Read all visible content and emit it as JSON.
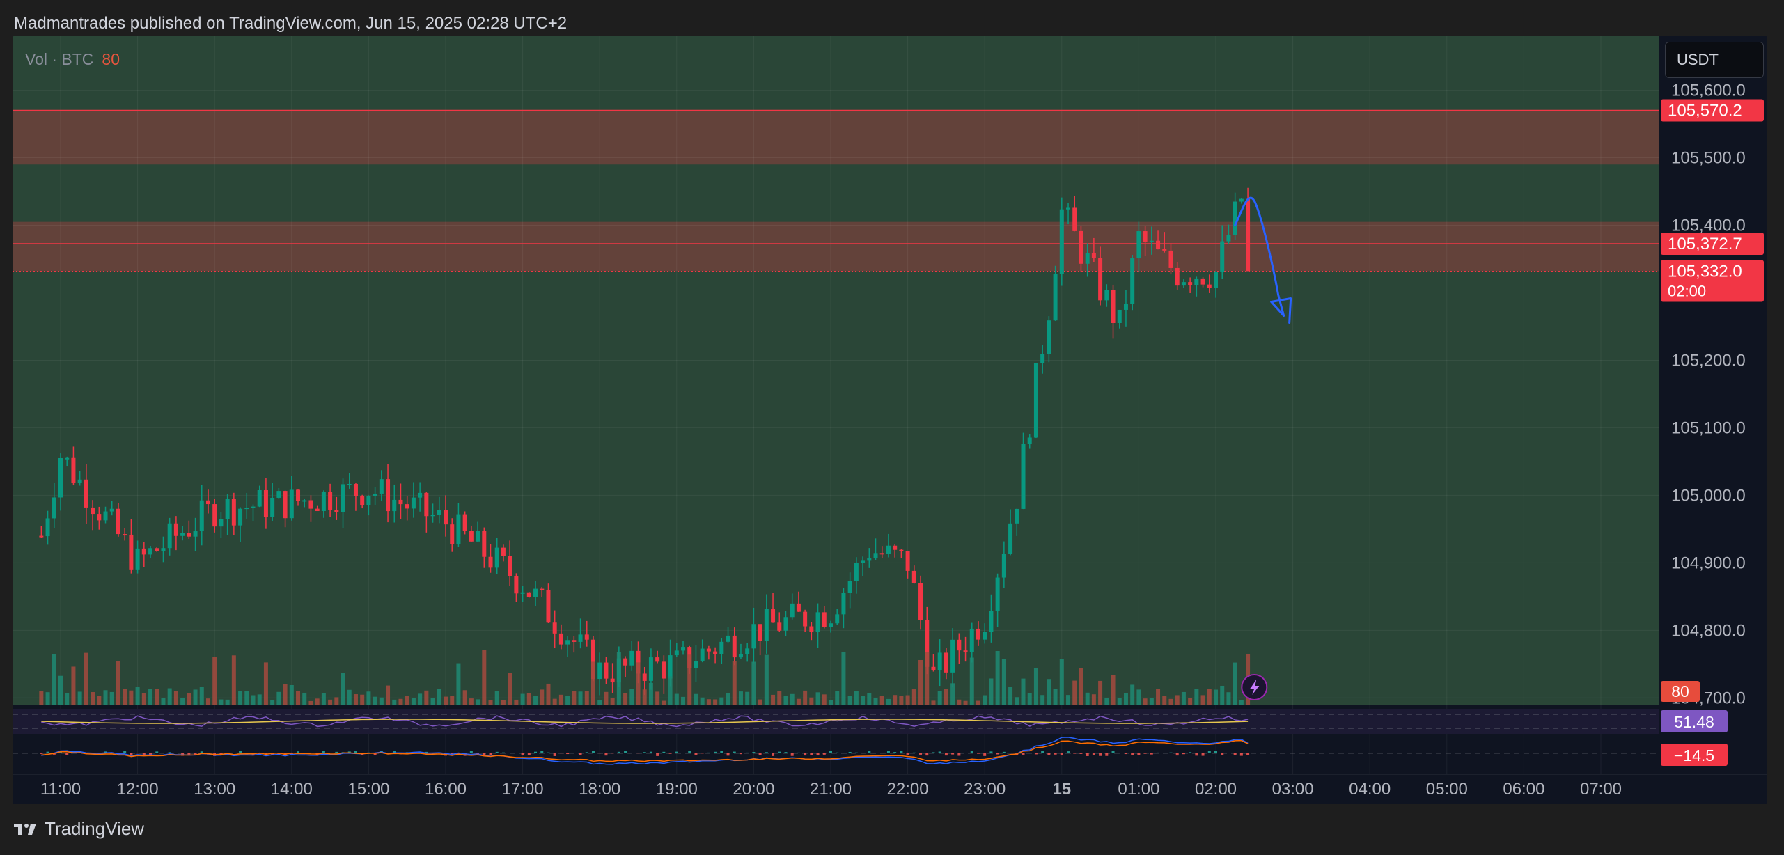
{
  "header": {
    "publisher_line": "Madmantrades published on TradingView.com, Jun 15, 2025 02:28 UTC+2"
  },
  "legend": {
    "symbol_label": "Vol · BTC",
    "value": "80"
  },
  "currency_button": {
    "label": "USDT"
  },
  "footer": {
    "brand": "TradingView",
    "icon": "tradingview-logo-icon"
  },
  "colors": {
    "background": "#1e1e1e",
    "pane": "#0f1421",
    "green_zone": "#2a4637",
    "red_zone": "#66423a",
    "bull": "#089981",
    "bear": "#f23645",
    "price_line": "#f23645",
    "drawing": "#2962ff",
    "rsi_line": "#7e57c2",
    "rsi_ma": "#e6c74f",
    "macd_line": "#2962ff",
    "signal_line": "#ff6d00"
  },
  "chart_data": {
    "type": "candlestick",
    "symbol": "BTC / USDT",
    "interval_minutes": 5,
    "x_ticks": [
      "11:00",
      "12:00",
      "13:00",
      "14:00",
      "15:00",
      "16:00",
      "17:00",
      "18:00",
      "19:00",
      "20:00",
      "21:00",
      "22:00",
      "23:00",
      "15",
      "01:00",
      "02:00",
      "03:00",
      "04:00",
      "05:00",
      "06:00",
      "07:00"
    ],
    "y_ticks": [
      "105,600.0",
      "105,500.0",
      "105,400.0",
      "105,200.0",
      "105,100.0",
      "105,000.0",
      "104,900.0",
      "104,800.0",
      "104,700.0"
    ],
    "y_range": [
      104690,
      105680
    ],
    "zones": [
      {
        "type": "resistance",
        "low": 105490,
        "high": 105570.2
      },
      {
        "type": "resistance",
        "low": 105332.0,
        "high": 105405
      }
    ],
    "price_labels": [
      {
        "text": "105,570.2",
        "value": 105570.2
      },
      {
        "text": "105,372.7",
        "value": 105372.7
      },
      {
        "text": "105,332.0",
        "sub": "02:00",
        "value": 105332.0
      }
    ],
    "anchor_candles": [
      {
        "time": "10:45",
        "close": 104940
      },
      {
        "time": "11:00",
        "close": 105060
      },
      {
        "time": "12:00",
        "close": 104900
      },
      {
        "time": "13:00",
        "close": 104980
      },
      {
        "time": "14:00",
        "close": 104990
      },
      {
        "time": "15:00",
        "close": 105010
      },
      {
        "time": "16:00",
        "close": 104960
      },
      {
        "time": "17:00",
        "close": 104870
      },
      {
        "time": "18:00",
        "close": 104740
      },
      {
        "time": "19:00",
        "close": 104750
      },
      {
        "time": "20:00",
        "close": 104800
      },
      {
        "time": "21:00",
        "close": 104830
      },
      {
        "time": "21:30",
        "close": 104920
      },
      {
        "time": "22:00",
        "close": 104900
      },
      {
        "time": "22:20",
        "close": 104730
      },
      {
        "time": "23:00",
        "close": 104820
      },
      {
        "time": "23:25",
        "close": 105000
      },
      {
        "time": "23:50",
        "close": 105280
      },
      {
        "time": "00:00",
        "close": 105420
      },
      {
        "time": "00:45",
        "close": 105250
      },
      {
        "time": "01:00",
        "close": 105380
      },
      {
        "time": "01:30",
        "close": 105330
      },
      {
        "time": "02:00",
        "close": 105330
      },
      {
        "time": "02:20",
        "close": 105440
      },
      {
        "time": "02:28",
        "close": 105332
      }
    ],
    "volume": {
      "label": "Vol · BTC",
      "last": 80
    },
    "rsi": {
      "last": 51.48
    },
    "macd": {
      "last": -14.5
    },
    "drawing": {
      "type": "freehand",
      "color": "blue",
      "description_text": ""
    },
    "grid": true
  }
}
